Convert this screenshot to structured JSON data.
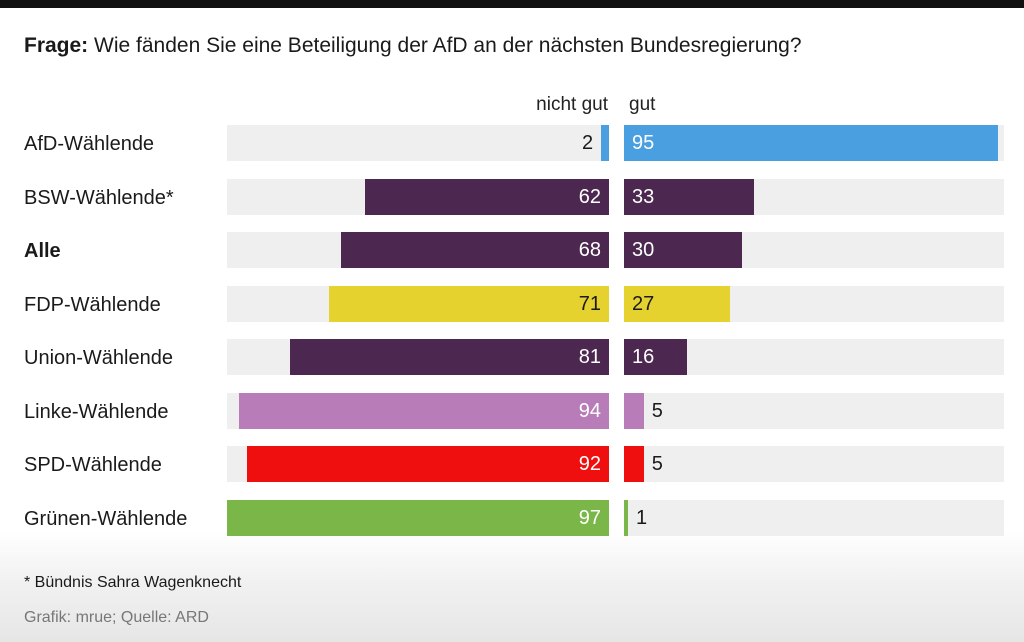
{
  "header": {
    "question_label": "Frage:",
    "question_text": " Wie fänden Sie eine Beteiligung der AfD an der nächsten Bundesregierung?"
  },
  "chart_data": {
    "type": "bar",
    "orientation": "horizontal-diverging",
    "title": "Frage: Wie fänden Sie eine Beteiligung der AfD an der nächsten Bundesregierung?",
    "categories": [
      "AfD-Wählende",
      "BSW-Wählende*",
      "Alle",
      "FDP-Wählende",
      "Union-Wählende",
      "Linke-Wählende",
      "SPD-Wählende",
      "Grünen-Wählende"
    ],
    "series": [
      {
        "name": "nicht gut",
        "values": [
          2,
          62,
          68,
          71,
          81,
          94,
          92,
          97
        ]
      },
      {
        "name": "gut",
        "values": [
          95,
          33,
          30,
          27,
          16,
          5,
          5,
          1
        ]
      }
    ],
    "colors": [
      "#4a9fe0",
      "#4c2850",
      "#4c2850",
      "#e6d22e",
      "#4c2850",
      "#b87cb8",
      "#f00f0f",
      "#7ab648"
    ],
    "bold_categories": [
      "Alle"
    ],
    "xlim": [
      0,
      100
    ]
  },
  "footer": {
    "footnote": "* Bündnis Sahra Wagenknecht",
    "source": "Grafik: mrue; Quelle: ARD"
  }
}
